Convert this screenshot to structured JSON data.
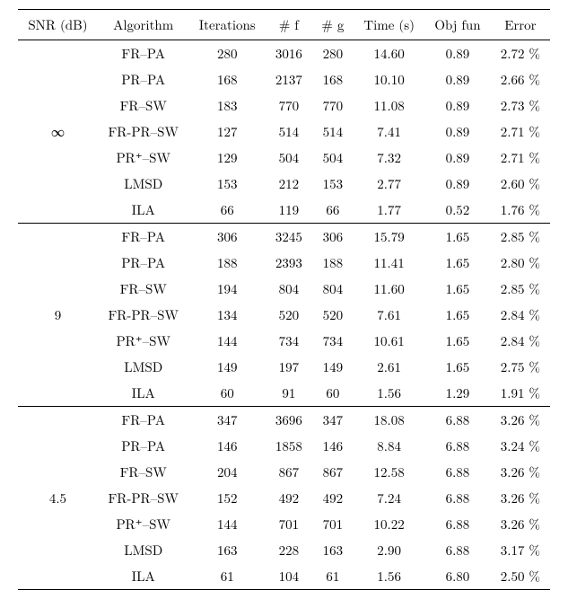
{
  "table": {
    "columns": [
      "SNR (dB)",
      "Algorithm",
      "Iterations",
      "# f",
      "# g",
      "Time (s)",
      "Obj fun",
      "Error"
    ],
    "groups": [
      {
        "snr": "∞",
        "rows": [
          {
            "algorithm": "FR–PA",
            "iterations": 280,
            "f": 3016,
            "g": 280,
            "time": "14.60",
            "obj": "0.89",
            "error": "2.72 %"
          },
          {
            "algorithm": "PR–PA",
            "iterations": 168,
            "f": 2137,
            "g": 168,
            "time": "10.10",
            "obj": "0.89",
            "error": "2.66 %"
          },
          {
            "algorithm": "FR–SW",
            "iterations": 183,
            "f": 770,
            "g": 770,
            "time": "11.08",
            "obj": "0.89",
            "error": "2.73 %"
          },
          {
            "algorithm": "FR-PR–SW",
            "iterations": 127,
            "f": 514,
            "g": 514,
            "time": "7.41",
            "obj": "0.89",
            "error": "2.71 %"
          },
          {
            "algorithm": "PR⁺–SW",
            "iterations": 129,
            "f": 504,
            "g": 504,
            "time": "7.32",
            "obj": "0.89",
            "error": "2.71 %"
          },
          {
            "algorithm": "LMSD",
            "iterations": 153,
            "f": 212,
            "g": 153,
            "time": "2.77",
            "obj": "0.89",
            "error": "2.60 %"
          },
          {
            "algorithm": "ILA",
            "iterations": 66,
            "f": 119,
            "g": 66,
            "time": "1.77",
            "obj": "0.52",
            "error": "1.76 %"
          }
        ]
      },
      {
        "snr": "9",
        "rows": [
          {
            "algorithm": "FR–PA",
            "iterations": 306,
            "f": 3245,
            "g": 306,
            "time": "15.79",
            "obj": "1.65",
            "error": "2.85 %"
          },
          {
            "algorithm": "PR–PA",
            "iterations": 188,
            "f": 2393,
            "g": 188,
            "time": "11.41",
            "obj": "1.65",
            "error": "2.80 %"
          },
          {
            "algorithm": "FR–SW",
            "iterations": 194,
            "f": 804,
            "g": 804,
            "time": "11.60",
            "obj": "1.65",
            "error": "2.85 %"
          },
          {
            "algorithm": "FR-PR–SW",
            "iterations": 134,
            "f": 520,
            "g": 520,
            "time": "7.61",
            "obj": "1.65",
            "error": "2.84 %"
          },
          {
            "algorithm": "PR⁺–SW",
            "iterations": 144,
            "f": 734,
            "g": 734,
            "time": "10.61",
            "obj": "1.65",
            "error": "2.84 %"
          },
          {
            "algorithm": "LMSD",
            "iterations": 149,
            "f": 197,
            "g": 149,
            "time": "2.61",
            "obj": "1.65",
            "error": "2.75 %"
          },
          {
            "algorithm": "ILA",
            "iterations": 60,
            "f": 91,
            "g": 60,
            "time": "1.56",
            "obj": "1.29",
            "error": "1.91 %"
          }
        ]
      },
      {
        "snr": "4.5",
        "rows": [
          {
            "algorithm": "FR–PA",
            "iterations": 347,
            "f": 3696,
            "g": 347,
            "time": "18.08",
            "obj": "6.88",
            "error": "3.26 %"
          },
          {
            "algorithm": "PR–PA",
            "iterations": 146,
            "f": 1858,
            "g": 146,
            "time": "8.84",
            "obj": "6.88",
            "error": "3.24 %"
          },
          {
            "algorithm": "FR–SW",
            "iterations": 204,
            "f": 867,
            "g": 867,
            "time": "12.58",
            "obj": "6.88",
            "error": "3.26 %"
          },
          {
            "algorithm": "FR-PR–SW",
            "iterations": 152,
            "f": 492,
            "g": 492,
            "time": "7.24",
            "obj": "6.88",
            "error": "3.26 %"
          },
          {
            "algorithm": "PR⁺–SW",
            "iterations": 144,
            "f": 701,
            "g": 701,
            "time": "10.22",
            "obj": "6.88",
            "error": "3.26 %"
          },
          {
            "algorithm": "LMSD",
            "iterations": 163,
            "f": 228,
            "g": 163,
            "time": "2.90",
            "obj": "6.88",
            "error": "3.17 %"
          },
          {
            "algorithm": "ILA",
            "iterations": 61,
            "f": 104,
            "g": 61,
            "time": "1.56",
            "obj": "6.80",
            "error": "2.50 %"
          }
        ]
      }
    ],
    "style": {
      "border_color": "#000000",
      "background_color": "#ffffff",
      "text_color": "#000000",
      "font_size": 15,
      "column_align": [
        "center",
        "center",
        "center",
        "center",
        "center",
        "center",
        "center",
        "center"
      ]
    }
  }
}
